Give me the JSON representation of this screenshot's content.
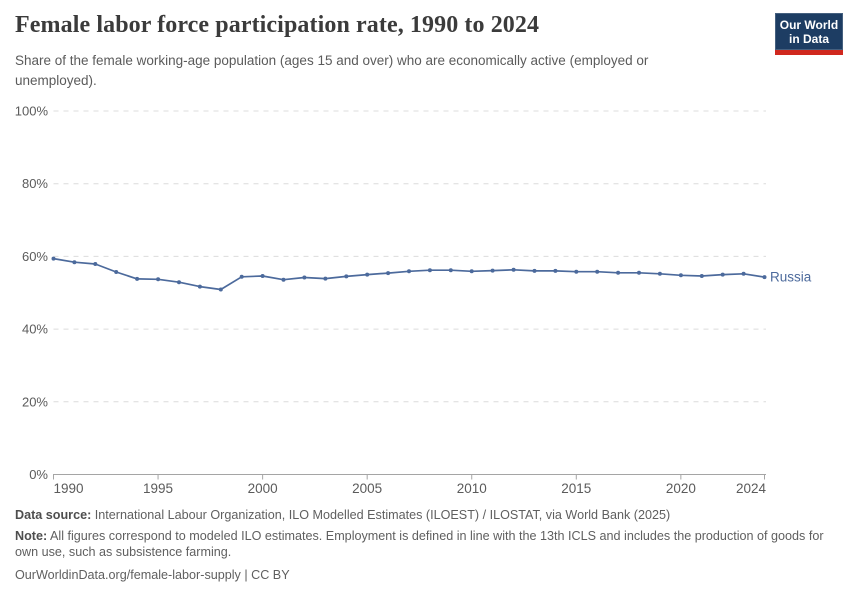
{
  "header": {
    "title": "Female labor force participation rate, 1990 to 2024",
    "subtitle": "Share of the female working-age population (ages 15 and over) who are economically active (employed or unemployed).",
    "logo": {
      "line1": "Our World",
      "line2": "in Data"
    }
  },
  "chart_data": {
    "type": "line",
    "title": "Female labor force participation rate, 1990 to 2024",
    "xlabel": "",
    "ylabel": "",
    "xlim": [
      1990,
      2024
    ],
    "ylim": [
      0,
      100
    ],
    "x_ticks": [
      1990,
      1995,
      2000,
      2005,
      2010,
      2015,
      2020,
      2024
    ],
    "y_tick_values": [
      0,
      20,
      40,
      60,
      80,
      100
    ],
    "y_tick_labels": [
      "0%",
      "20%",
      "40%",
      "60%",
      "80%",
      "100%"
    ],
    "grid": "horizontal-dashed",
    "legend_position": "end-of-line-label",
    "series": [
      {
        "name": "Russia",
        "color": "#4C6A9C",
        "x": [
          1990,
          1991,
          1992,
          1993,
          1994,
          1995,
          1996,
          1997,
          1998,
          1999,
          2000,
          2001,
          2002,
          2003,
          2004,
          2005,
          2006,
          2007,
          2008,
          2009,
          2010,
          2011,
          2012,
          2013,
          2014,
          2015,
          2016,
          2017,
          2018,
          2019,
          2020,
          2021,
          2022,
          2023,
          2024
        ],
        "values": [
          59.4,
          58.4,
          57.9,
          55.7,
          53.8,
          53.7,
          52.9,
          51.7,
          50.9,
          54.4,
          54.6,
          53.6,
          54.2,
          53.9,
          54.5,
          55.0,
          55.4,
          55.9,
          56.2,
          56.2,
          55.9,
          56.1,
          56.3,
          56.0,
          56.0,
          55.8,
          55.8,
          55.5,
          55.5,
          55.2,
          54.8,
          54.6,
          55.0,
          55.2,
          54.3
        ]
      }
    ]
  },
  "footer": {
    "data_source_label": "Data source:",
    "data_source_text": "International Labour Organization, ILO Modelled Estimates (ILOEST) / ILOSTAT, via World Bank (2025)",
    "note_label": "Note:",
    "note_text": "All figures correspond to modeled ILO estimates. Employment is defined in line with the 13th ICLS and includes the production of goods for own use, such as subsistence farming.",
    "citation": "OurWorldinData.org/female-labor-supply | CC BY"
  },
  "colors": {
    "line": "#4C6A9C",
    "entity_label": "#4C6A9C",
    "title_text": "#3b3b3b",
    "subtitle_text": "#5b5b5b",
    "axis_label_text": "#5b5b5b",
    "gridline": "#dcdcdc",
    "axis_line": "#a5a5a5",
    "logo_background": "#1d3d63",
    "logo_red_bar": "#d0281e",
    "background": "#ffffff"
  }
}
